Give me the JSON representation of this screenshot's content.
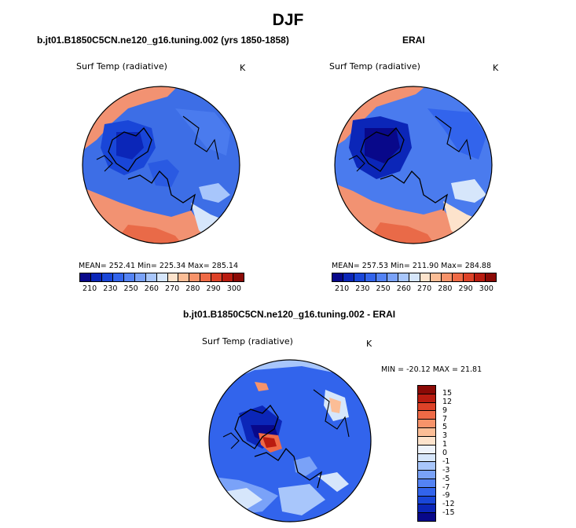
{
  "title": "DJF",
  "left_panel": {
    "case_title": "b.jt01.B1850C5CN.ne120_g16.tuning.002 (yrs 1850-1858)",
    "variable": "Surf Temp (radiative)",
    "unit": "K",
    "stats": "MEAN= 252.41   Min= 225.34   Max= 285.14",
    "colorbar": {
      "colors": [
        "#08088a",
        "#0b26b8",
        "#1946d8",
        "#3264ec",
        "#5483f4",
        "#7aa2f8",
        "#a8c6fb",
        "#d6e6fb",
        "#fde3cc",
        "#fbbd96",
        "#f7936a",
        "#ef6a46",
        "#dd4228",
        "#b91c10",
        "#8b0a06"
      ],
      "tick_labels": [
        "210",
        "230",
        "250",
        "260",
        "270",
        "280",
        "290",
        "300"
      ]
    }
  },
  "right_panel": {
    "case_title": "ERAI",
    "variable": "Surf Temp (radiative)",
    "unit": "K",
    "stats": "MEAN= 257.53   Min= 211.90   Max= 284.88",
    "colorbar": {
      "colors": [
        "#08088a",
        "#0b26b8",
        "#1946d8",
        "#3264ec",
        "#5483f4",
        "#7aa2f8",
        "#a8c6fb",
        "#d6e6fb",
        "#fde3cc",
        "#fbbd96",
        "#f7936a",
        "#ef6a46",
        "#dd4228",
        "#b91c10",
        "#8b0a06"
      ],
      "tick_labels": [
        "210",
        "230",
        "250",
        "260",
        "270",
        "280",
        "290",
        "300"
      ]
    }
  },
  "diff_panel": {
    "case_title": "b.jt01.B1850C5CN.ne120_g16.tuning.002 - ERAI",
    "variable": "Surf Temp (radiative)",
    "unit": "K",
    "stats": "MIN = -20.12  MAX =  21.81",
    "colorbar": {
      "colors": [
        "#8b0a06",
        "#b91c10",
        "#dd4228",
        "#ef6a46",
        "#f7936a",
        "#fbbd96",
        "#fde3cc",
        "#eef3fb",
        "#d6e6fb",
        "#a8c6fb",
        "#7aa2f8",
        "#5483f4",
        "#3264ec",
        "#1946d8",
        "#0b26b8",
        "#08088a"
      ],
      "tick_labels": [
        "15",
        "12",
        "9",
        "7",
        "5",
        "3",
        "1",
        "0",
        "-1",
        "-3",
        "-5",
        "-7",
        "-9",
        "-12",
        "-15"
      ]
    }
  }
}
